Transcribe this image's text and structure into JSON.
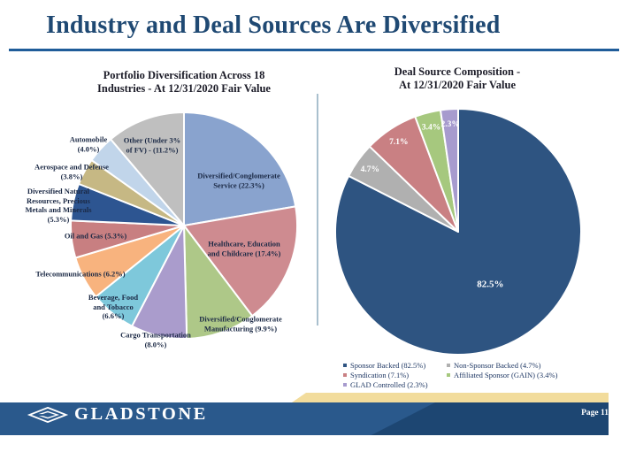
{
  "slide_title": "Industry and Deal Sources Are Diversified",
  "colors": {
    "title": "#1F4973",
    "rule": "#1F5C99",
    "panel_divider": "#A9C0CE",
    "footer_bar_left": "#2A598C",
    "footer_bar_right": "#1D4672",
    "footer_accent_strip": "#F2DC9C"
  },
  "chart_data": [
    {
      "type": "pie",
      "title": "Portfolio Diversification Across 18\nIndustries - At 12/31/2020 Fair Value",
      "legend_position": "none",
      "start_angle_deg": 0,
      "direction": "clockwise",
      "slices": [
        {
          "label": "Diversified/Conglomerate Service",
          "value": 22.3,
          "display": "Diversified/Conglomerate\nService (22.3%)",
          "color": "#89A3CE"
        },
        {
          "label": "Healthcare, Education and Childcare",
          "value": 17.4,
          "display": "Healthcare, Education\nand Childcare (17.4%)",
          "color": "#CE8B90"
        },
        {
          "label": "Diversified/Conglomerate Manufacturing",
          "value": 9.9,
          "display": "Diversified/Conglomerate\nManufacturing (9.9%)",
          "color": "#AEC888"
        },
        {
          "label": "Cargo Transportation",
          "value": 8.0,
          "display": "Cargo Transportation\n(8.0%)",
          "color": "#AA9CCC"
        },
        {
          "label": "Beverage, Food and Tobacco",
          "value": 6.6,
          "display": "Beverage, Food\nand Tobacco\n(6.6%)",
          "color": "#7EC8DB"
        },
        {
          "label": "Telecommunications",
          "value": 6.2,
          "display": "Telecommunications (6.2%)",
          "color": "#F8B37E"
        },
        {
          "label": "Oil and Gas",
          "value": 5.3,
          "display": "Oil and Gas (5.3%)",
          "color": "#C87F81"
        },
        {
          "label": "Diversified Natural Resources, Precious Metals and Minerals",
          "value": 5.3,
          "display": "Diversified Natural\nResources, Precious\nMetals and Minerals\n(5.3%)",
          "color": "#2D5591"
        },
        {
          "label": "Aerospace and Defense",
          "value": 3.8,
          "display": "Aerospace and Defense\n(3.8%)",
          "color": "#C6B884"
        },
        {
          "label": "Automobile",
          "value": 4.0,
          "display": "Automobile\n(4.0%)",
          "color": "#C1D5EA"
        },
        {
          "label": "Other (Under 3% of FV)",
          "value": 11.2,
          "display": "Other (Under 3%\nof FV) - (11.2%)",
          "color": "#BFBFBF"
        }
      ]
    },
    {
      "type": "pie",
      "title": "Deal Source Composition -\nAt 12/31/2020 Fair Value",
      "legend_position": "bottom",
      "start_angle_deg": 0,
      "direction": "clockwise",
      "slices": [
        {
          "label": "Sponsor Backed",
          "value": 82.5,
          "pct": "82.5%",
          "color": "#2E5481"
        },
        {
          "label": "Non-Sponsor Backed",
          "value": 4.7,
          "pct": "4.7%",
          "color": "#B0B0B0"
        },
        {
          "label": "Syndication",
          "value": 7.1,
          "pct": "7.1%",
          "color": "#C98083"
        },
        {
          "label": "Affiliated Sponsor (GAIN)",
          "value": 3.4,
          "pct": "3.4%",
          "color": "#A6C87E"
        },
        {
          "label": "GLAD Controlled",
          "value": 2.3,
          "pct": "2.3%",
          "color": "#A79BCE"
        }
      ],
      "legend": [
        {
          "label": "Sponsor Backed (82.5%)",
          "color": "#2E5481"
        },
        {
          "label": "Syndication (7.1%)",
          "color": "#C98083"
        },
        {
          "label": "GLAD Controlled (2.3%)",
          "color": "#A79BCE"
        },
        {
          "label": "Non-Sponsor Backed (4.7%)",
          "color": "#B0B0B0"
        },
        {
          "label": "Affiliated Sponsor (GAIN) (3.4%)",
          "color": "#A6C87E"
        }
      ]
    }
  ],
  "footer": {
    "brand": "GLADSTONE",
    "page_label": "Page 11"
  }
}
